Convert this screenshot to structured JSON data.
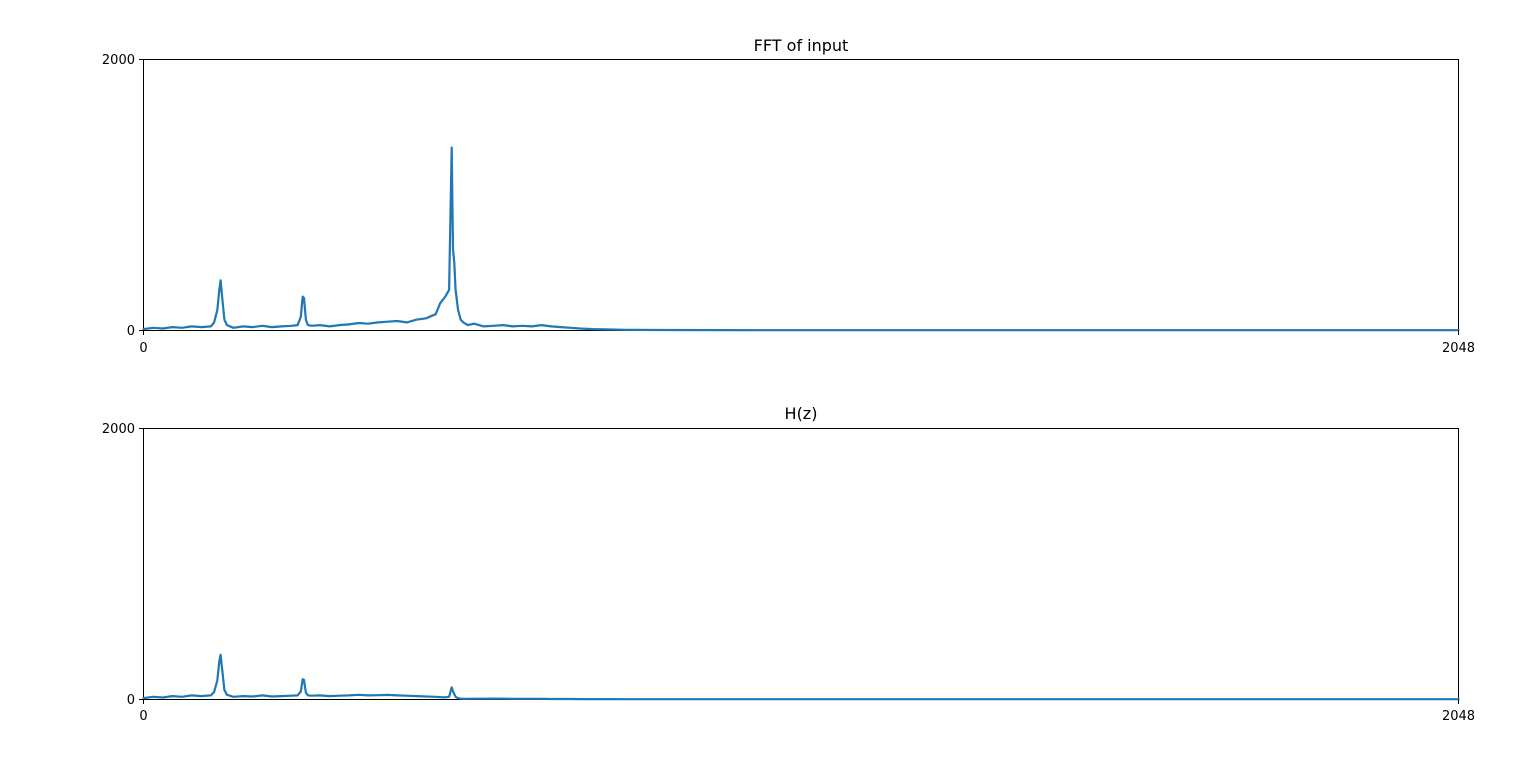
{
  "chart_data": [
    {
      "type": "line",
      "title": "FFT of input",
      "xlabel": "",
      "ylabel": "",
      "xlim": [
        0,
        2048
      ],
      "ylim": [
        0,
        2000
      ],
      "xticks": [
        "0",
        "2048"
      ],
      "yticks": [
        "0",
        "2000"
      ],
      "grid": false,
      "color": "#1f77b4",
      "x": [
        0,
        15,
        30,
        45,
        60,
        75,
        90,
        105,
        110,
        115,
        118,
        120,
        123,
        126,
        130,
        140,
        155,
        170,
        185,
        200,
        215,
        230,
        240,
        245,
        248,
        250,
        253,
        256,
        262,
        275,
        290,
        305,
        320,
        335,
        350,
        365,
        380,
        395,
        410,
        425,
        440,
        455,
        462,
        470,
        476,
        480,
        482,
        484,
        486,
        490,
        494,
        498,
        505,
        515,
        530,
        545,
        560,
        575,
        590,
        605,
        620,
        635,
        650,
        665,
        680,
        700,
        720,
        750,
        800,
        900,
        1000,
        1200,
        1400,
        1600,
        1800,
        2048
      ],
      "values": [
        10,
        20,
        15,
        25,
        20,
        30,
        25,
        30,
        60,
        150,
        300,
        370,
        220,
        80,
        40,
        20,
        30,
        25,
        35,
        25,
        30,
        35,
        40,
        100,
        250,
        240,
        80,
        40,
        35,
        40,
        30,
        40,
        45,
        55,
        50,
        60,
        65,
        70,
        60,
        80,
        90,
        120,
        200,
        250,
        300,
        1350,
        600,
        500,
        300,
        150,
        80,
        60,
        40,
        50,
        30,
        35,
        40,
        30,
        35,
        30,
        40,
        30,
        25,
        20,
        15,
        10,
        8,
        5,
        4,
        3,
        2,
        2,
        2,
        2,
        2,
        2
      ]
    },
    {
      "type": "line",
      "title": "H(z)",
      "xlabel": "",
      "ylabel": "",
      "xlim": [
        0,
        2048
      ],
      "ylim": [
        0,
        2000
      ],
      "xticks": [
        "0",
        "2048"
      ],
      "yticks": [
        "0",
        "2000"
      ],
      "grid": false,
      "color": "#1f77b4",
      "x": [
        0,
        15,
        30,
        45,
        60,
        75,
        90,
        105,
        110,
        115,
        118,
        120,
        123,
        126,
        130,
        140,
        155,
        170,
        185,
        200,
        215,
        230,
        240,
        245,
        248,
        250,
        253,
        256,
        262,
        275,
        290,
        305,
        320,
        335,
        350,
        365,
        380,
        395,
        410,
        425,
        440,
        455,
        462,
        470,
        476,
        480,
        482,
        484,
        486,
        490,
        494,
        498,
        505,
        515,
        530,
        545,
        560,
        575,
        590,
        605,
        620,
        635,
        650,
        665,
        680,
        700,
        720,
        750,
        800,
        900,
        1000,
        1200,
        1400,
        1600,
        1800,
        2048
      ],
      "values": [
        10,
        20,
        15,
        25,
        20,
        30,
        25,
        30,
        55,
        140,
        280,
        330,
        200,
        70,
        35,
        20,
        25,
        22,
        30,
        22,
        25,
        28,
        30,
        60,
        150,
        145,
        50,
        30,
        28,
        30,
        25,
        28,
        30,
        35,
        30,
        32,
        34,
        30,
        28,
        25,
        22,
        20,
        18,
        16,
        20,
        90,
        60,
        40,
        20,
        10,
        6,
        5,
        5,
        6,
        6,
        7,
        6,
        5,
        5,
        5,
        5,
        4,
        4,
        4,
        3,
        3,
        3,
        2,
        2,
        2,
        2,
        2,
        2,
        2,
        2,
        2
      ]
    }
  ]
}
